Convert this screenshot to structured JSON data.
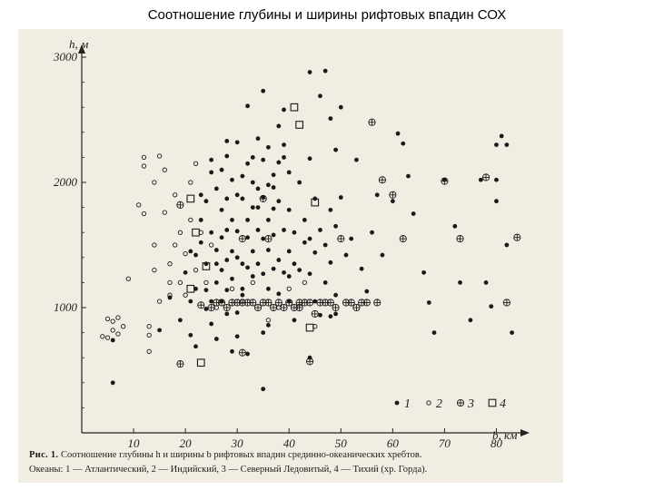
{
  "title": "Соотношение глубины и ширины рифтовых впадин СОХ",
  "caption": {
    "figure_label": "Рис. 1.",
    "line1": "Соотношение глубины h и ширины b рифтовых впадин срединно-океанических хребтов.",
    "line2": "Океаны: 1 — Атлантический, 2 — Индийский, 3 — Северный Ледовитый, 4 — Тихий (хр. Горда)."
  },
  "chart_data": {
    "type": "scatter",
    "title": "",
    "xlabel": "b, км",
    "ylabel": "h, м",
    "xlim": [
      0,
      85
    ],
    "ylim": [
      0,
      3000
    ],
    "xticks": [
      0,
      10,
      20,
      30,
      40,
      50,
      60,
      70,
      80
    ],
    "yticks": [
      1000,
      2000,
      3000
    ],
    "x_tick_labels": [
      "10",
      "20",
      "30",
      "40",
      "50",
      "60",
      "70",
      "80"
    ],
    "y_tick_labels": [
      "1000",
      "2000",
      "3000"
    ],
    "grid": false,
    "legend_position": "bottom-right",
    "series": [
      {
        "name": "1",
        "marker": "filled-circle",
        "color": "#1a1a1a",
        "points": [
          [
            6,
            740
          ],
          [
            6,
            400
          ],
          [
            15,
            820
          ],
          [
            17,
            1080
          ],
          [
            19,
            900
          ],
          [
            20,
            1280
          ],
          [
            21,
            1050
          ],
          [
            21,
            780
          ],
          [
            22,
            690
          ],
          [
            22,
            1420
          ],
          [
            23,
            1900
          ],
          [
            23,
            1700
          ],
          [
            23,
            1520
          ],
          [
            24,
            1350
          ],
          [
            24,
            1140
          ],
          [
            24,
            990
          ],
          [
            25,
            2180
          ],
          [
            25,
            2080
          ],
          [
            25,
            1600
          ],
          [
            25,
            870
          ],
          [
            26,
            1950
          ],
          [
            26,
            1460
          ],
          [
            26,
            1200
          ],
          [
            27,
            1780
          ],
          [
            27,
            1560
          ],
          [
            27,
            1300
          ],
          [
            27,
            1050
          ],
          [
            28,
            2330
          ],
          [
            28,
            2210
          ],
          [
            28,
            1870
          ],
          [
            28,
            1620
          ],
          [
            28,
            1380
          ],
          [
            28,
            1140
          ],
          [
            29,
            2020
          ],
          [
            29,
            1700
          ],
          [
            29,
            1450
          ],
          [
            29,
            1230
          ],
          [
            30,
            2320
          ],
          [
            30,
            1900
          ],
          [
            30,
            1610
          ],
          [
            30,
            1400
          ],
          [
            30,
            960
          ],
          [
            31,
            2050
          ],
          [
            31,
            1870
          ],
          [
            31,
            1350
          ],
          [
            31,
            1100
          ],
          [
            32,
            2610
          ],
          [
            32,
            2150
          ],
          [
            32,
            1700
          ],
          [
            32,
            1560
          ],
          [
            32,
            1320
          ],
          [
            33,
            2000
          ],
          [
            33,
            1800
          ],
          [
            33,
            1450
          ],
          [
            33,
            1250
          ],
          [
            34,
            2350
          ],
          [
            34,
            1950
          ],
          [
            34,
            1620
          ],
          [
            34,
            1350
          ],
          [
            35,
            2730
          ],
          [
            35,
            2180
          ],
          [
            35,
            1880
          ],
          [
            35,
            1550
          ],
          [
            35,
            1270
          ],
          [
            35,
            800
          ],
          [
            36,
            2280
          ],
          [
            36,
            1980
          ],
          [
            36,
            1700
          ],
          [
            36,
            1460
          ],
          [
            36,
            1150
          ],
          [
            37,
            2060
          ],
          [
            37,
            1790
          ],
          [
            37,
            1580
          ],
          [
            37,
            1310
          ],
          [
            38,
            2450
          ],
          [
            38,
            2160
          ],
          [
            38,
            1850
          ],
          [
            38,
            1380
          ],
          [
            39,
            2580
          ],
          [
            39,
            2300
          ],
          [
            39,
            1620
          ],
          [
            39,
            1280
          ],
          [
            40,
            2080
          ],
          [
            40,
            1780
          ],
          [
            40,
            1450
          ],
          [
            40,
            1050
          ],
          [
            41,
            1600
          ],
          [
            42,
            2000
          ],
          [
            42,
            1300
          ],
          [
            43,
            1520
          ],
          [
            44,
            2880
          ],
          [
            44,
            2190
          ],
          [
            44,
            1270
          ],
          [
            45,
            1870
          ],
          [
            45,
            1440
          ],
          [
            46,
            2690
          ],
          [
            46,
            1620
          ],
          [
            46,
            940
          ],
          [
            47,
            2890
          ],
          [
            47,
            1500
          ],
          [
            47,
            1200
          ],
          [
            48,
            2510
          ],
          [
            48,
            1780
          ],
          [
            48,
            1360
          ],
          [
            48,
            930
          ],
          [
            49,
            1650
          ],
          [
            49,
            2260
          ],
          [
            49,
            950
          ],
          [
            50,
            2600
          ],
          [
            50,
            1880
          ],
          [
            51,
            1420
          ],
          [
            52,
            1550
          ],
          [
            53,
            2180
          ],
          [
            54,
            1310
          ],
          [
            55,
            1130
          ],
          [
            56,
            1600
          ],
          [
            57,
            1900
          ],
          [
            58,
            1420
          ],
          [
            60,
            1850
          ],
          [
            61,
            2390
          ],
          [
            62,
            2310
          ],
          [
            63,
            2050
          ],
          [
            64,
            1750
          ],
          [
            66,
            1280
          ],
          [
            67,
            1040
          ],
          [
            68,
            800
          ],
          [
            70,
            2020
          ],
          [
            72,
            1650
          ],
          [
            73,
            1200
          ],
          [
            75,
            900
          ],
          [
            77,
            2020
          ],
          [
            78,
            1200
          ],
          [
            79,
            1010
          ],
          [
            80,
            2300
          ],
          [
            80,
            2020
          ],
          [
            80,
            1850
          ],
          [
            81,
            2370
          ],
          [
            82,
            2300
          ],
          [
            82,
            1500
          ],
          [
            83,
            800
          ],
          [
            21,
            1450
          ],
          [
            24,
            1850
          ],
          [
            25,
            1050
          ],
          [
            26,
            750
          ],
          [
            28,
            950
          ],
          [
            30,
            770
          ],
          [
            32,
            630
          ],
          [
            33,
            2200
          ],
          [
            36,
            860
          ],
          [
            38,
            1110
          ],
          [
            41,
            900
          ],
          [
            43,
            1700
          ],
          [
            45,
            1050
          ],
          [
            37,
            1960
          ],
          [
            29,
            650
          ],
          [
            26,
            1350
          ],
          [
            22,
            1150
          ],
          [
            27,
            2100
          ],
          [
            31,
            1150
          ],
          [
            34,
            1800
          ],
          [
            39,
            2200
          ],
          [
            41,
            1350
          ],
          [
            44,
            1550
          ],
          [
            35,
            350
          ],
          [
            44,
            600
          ],
          [
            49,
            1100
          ],
          [
            40,
            1250
          ]
        ]
      },
      {
        "name": "2",
        "marker": "open-circle",
        "color": "#1a1a1a",
        "points": [
          [
            4,
            770
          ],
          [
            5,
            760
          ],
          [
            5,
            910
          ],
          [
            6,
            890
          ],
          [
            6,
            820
          ],
          [
            7,
            790
          ],
          [
            7,
            920
          ],
          [
            8,
            850
          ],
          [
            9,
            1230
          ],
          [
            11,
            1820
          ],
          [
            12,
            2200
          ],
          [
            12,
            2130
          ],
          [
            12,
            1750
          ],
          [
            13,
            850
          ],
          [
            13,
            780
          ],
          [
            13,
            650
          ],
          [
            14,
            2000
          ],
          [
            14,
            1500
          ],
          [
            14,
            1300
          ],
          [
            15,
            2210
          ],
          [
            16,
            2100
          ],
          [
            16,
            1760
          ],
          [
            17,
            1100
          ],
          [
            17,
            1350
          ],
          [
            18,
            1900
          ],
          [
            18,
            1500
          ],
          [
            19,
            1600
          ],
          [
            19,
            1200
          ],
          [
            20,
            1430
          ],
          [
            20,
            1100
          ],
          [
            21,
            2000
          ],
          [
            21,
            1700
          ],
          [
            22,
            2150
          ],
          [
            22,
            1300
          ],
          [
            23,
            1600
          ],
          [
            24,
            1200
          ],
          [
            25,
            1500
          ],
          [
            26,
            1000
          ],
          [
            29,
            1150
          ],
          [
            31,
            1050
          ],
          [
            33,
            1200
          ],
          [
            36,
            900
          ],
          [
            38,
            1000
          ],
          [
            40,
            1150
          ],
          [
            43,
            1200
          ],
          [
            45,
            850
          ],
          [
            17,
            1200
          ],
          [
            15,
            1050
          ]
        ]
      },
      {
        "name": "3",
        "marker": "circle-plus",
        "color": "#1a1a1a",
        "points": [
          [
            19,
            1820
          ],
          [
            19,
            550
          ],
          [
            26,
            1040
          ],
          [
            27,
            1040
          ],
          [
            28,
            1000
          ],
          [
            29,
            1040
          ],
          [
            30,
            1040
          ],
          [
            31,
            640
          ],
          [
            31,
            1040
          ],
          [
            31,
            1550
          ],
          [
            32,
            1040
          ],
          [
            33,
            1040
          ],
          [
            34,
            1000
          ],
          [
            35,
            1040
          ],
          [
            36,
            1040
          ],
          [
            36,
            1550
          ],
          [
            37,
            1000
          ],
          [
            38,
            1040
          ],
          [
            39,
            1000
          ],
          [
            40,
            1040
          ],
          [
            41,
            1000
          ],
          [
            42,
            1040
          ],
          [
            42,
            1000
          ],
          [
            43,
            1040
          ],
          [
            44,
            1040
          ],
          [
            45,
            950
          ],
          [
            46,
            1040
          ],
          [
            47,
            1040
          ],
          [
            48,
            1040
          ],
          [
            49,
            1000
          ],
          [
            50,
            1550
          ],
          [
            51,
            1040
          ],
          [
            52,
            1040
          ],
          [
            53,
            1000
          ],
          [
            54,
            1040
          ],
          [
            55,
            1040
          ],
          [
            56,
            2480
          ],
          [
            57,
            1040
          ],
          [
            58,
            2020
          ],
          [
            60,
            1900
          ],
          [
            62,
            1550
          ],
          [
            70,
            2010
          ],
          [
            73,
            1550
          ],
          [
            78,
            2040
          ],
          [
            82,
            1040
          ],
          [
            84,
            1560
          ],
          [
            23,
            1020
          ],
          [
            25,
            1000
          ],
          [
            35,
            1870
          ],
          [
            44,
            570
          ]
        ]
      },
      {
        "name": "4",
        "marker": "open-square",
        "color": "#1a1a1a",
        "points": [
          [
            21,
            1870
          ],
          [
            22,
            1600
          ],
          [
            24,
            1330
          ],
          [
            21,
            1150
          ],
          [
            23,
            560
          ],
          [
            41,
            2600
          ],
          [
            42,
            2460
          ],
          [
            45,
            1840
          ],
          [
            44,
            840
          ]
        ]
      }
    ]
  }
}
